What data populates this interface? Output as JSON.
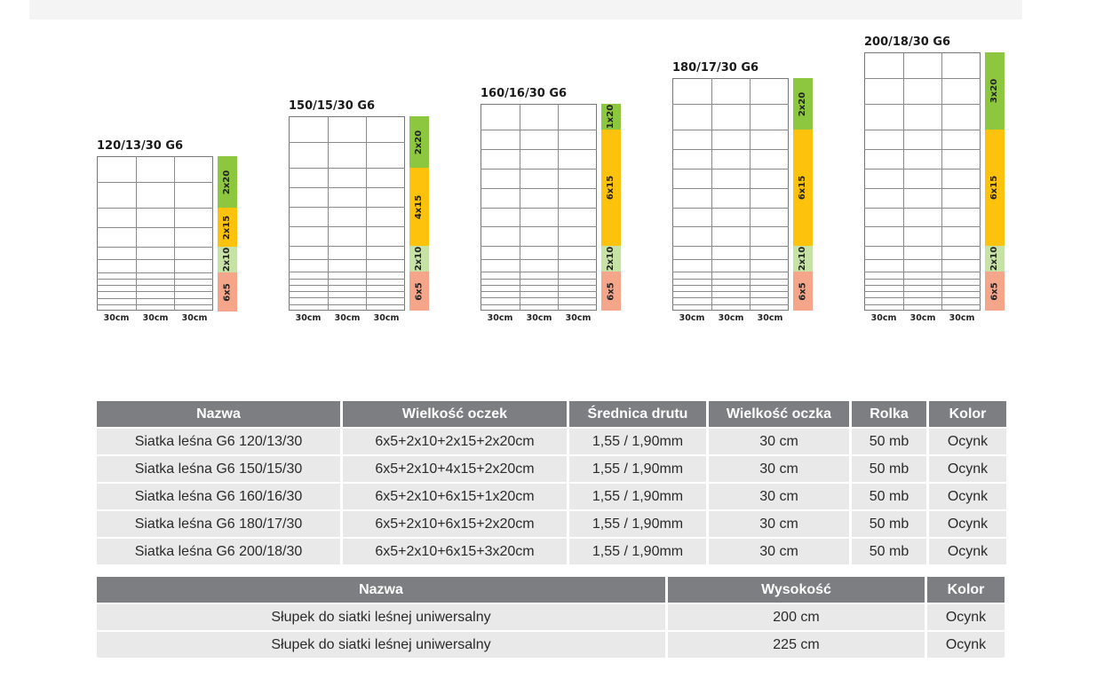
{
  "diagrams": [
    {
      "title": "120/13/30 G6",
      "spacings": [
        "30cm",
        "30cm",
        "30cm"
      ],
      "mesh_rows_cm": [
        20,
        20,
        15,
        15,
        10,
        10,
        5,
        5,
        5,
        5,
        5,
        5
      ],
      "segments": [
        {
          "label": "2x20",
          "color": "#8dc63f"
        },
        {
          "label": "2x15",
          "color": "#fcc20c"
        },
        {
          "label": "2x10",
          "color": "#c6e2a6"
        },
        {
          "label": "6x5",
          "color": "#f4a58a"
        }
      ]
    },
    {
      "title": "150/15/30 G6",
      "spacings": [
        "30cm",
        "30cm",
        "30cm"
      ],
      "mesh_rows_cm": [
        20,
        20,
        15,
        15,
        15,
        15,
        10,
        10,
        5,
        5,
        5,
        5,
        5,
        5
      ],
      "segments": [
        {
          "label": "2x20",
          "color": "#8dc63f"
        },
        {
          "label": "4x15",
          "color": "#fcc20c"
        },
        {
          "label": "2x10",
          "color": "#c6e2a6"
        },
        {
          "label": "6x5",
          "color": "#f4a58a"
        }
      ]
    },
    {
      "title": "160/16/30 G6",
      "spacings": [
        "30cm",
        "30cm",
        "30cm"
      ],
      "mesh_rows_cm": [
        20,
        15,
        15,
        15,
        15,
        15,
        15,
        10,
        10,
        5,
        5,
        5,
        5,
        5,
        5
      ],
      "segments": [
        {
          "label": "1x20",
          "color": "#8dc63f"
        },
        {
          "label": "6x15",
          "color": "#fcc20c"
        },
        {
          "label": "2x10",
          "color": "#c6e2a6"
        },
        {
          "label": "6x5",
          "color": "#f4a58a"
        }
      ]
    },
    {
      "title": "180/17/30 G6",
      "spacings": [
        "30cm",
        "30cm",
        "30cm"
      ],
      "mesh_rows_cm": [
        20,
        20,
        15,
        15,
        15,
        15,
        15,
        15,
        10,
        10,
        5,
        5,
        5,
        5,
        5,
        5
      ],
      "segments": [
        {
          "label": "2x20",
          "color": "#8dc63f"
        },
        {
          "label": "6x15",
          "color": "#fcc20c"
        },
        {
          "label": "2x10",
          "color": "#c6e2a6"
        },
        {
          "label": "6x5",
          "color": "#f4a58a"
        }
      ]
    },
    {
      "title": "200/18/30 G6",
      "spacings": [
        "30cm",
        "30cm",
        "30cm"
      ],
      "mesh_rows_cm": [
        20,
        20,
        20,
        15,
        15,
        15,
        15,
        15,
        15,
        10,
        10,
        5,
        5,
        5,
        5,
        5,
        5
      ],
      "segments": [
        {
          "label": "3x20",
          "color": "#8dc63f"
        },
        {
          "label": "6x15",
          "color": "#fcc20c"
        },
        {
          "label": "2x10",
          "color": "#c6e2a6"
        },
        {
          "label": "6x5",
          "color": "#f4a58a"
        }
      ]
    }
  ],
  "table1": {
    "headers": [
      "Nazwa",
      "Wielkość oczek",
      "Średnica drutu",
      "Wielkość oczka",
      "Rolka",
      "Kolor"
    ],
    "header_color": "#7d7e81",
    "row_color": "#e9e9ea",
    "rows": [
      [
        "Siatka leśna G6 120/13/30",
        "6x5+2x10+2x15+2x20cm",
        "1,55 / 1,90mm",
        "30 cm",
        "50 mb",
        "Ocynk"
      ],
      [
        "Siatka leśna G6 150/15/30",
        "6x5+2x10+4x15+2x20cm",
        "1,55 / 1,90mm",
        "30 cm",
        "50 mb",
        "Ocynk"
      ],
      [
        "Siatka leśna G6 160/16/30",
        "6x5+2x10+6x15+1x20cm",
        "1,55 / 1,90mm",
        "30 cm",
        "50 mb",
        "Ocynk"
      ],
      [
        "Siatka leśna G6 180/17/30",
        "6x5+2x10+6x15+2x20cm",
        "1,55 / 1,90mm",
        "30 cm",
        "50 mb",
        "Ocynk"
      ],
      [
        "Siatka leśna G6 200/18/30",
        "6x5+2x10+6x15+3x20cm",
        "1,55 / 1,90mm",
        "30 cm",
        "50 mb",
        "Ocynk"
      ]
    ]
  },
  "table2": {
    "headers": [
      "Nazwa",
      "Wysokość",
      "Kolor"
    ],
    "rows": [
      [
        "Słupek do siatki leśnej uniwersalny",
        "200 cm",
        "Ocynk"
      ],
      [
        "Słupek do siatki leśnej uniwersalny",
        "225 cm",
        "Ocynk"
      ]
    ]
  }
}
